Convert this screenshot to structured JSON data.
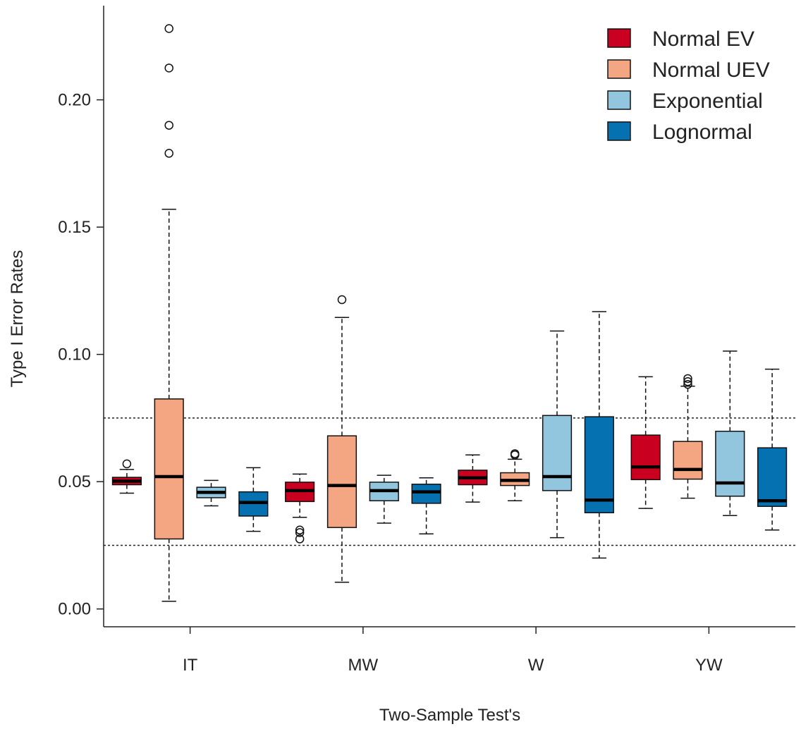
{
  "chart_data": {
    "type": "boxplot",
    "xlabel": "Two-Sample Test's",
    "ylabel": "Type I Error Rates",
    "ylim": [
      -0.007,
      0.237
    ],
    "yticks": [
      {
        "value": 0.0,
        "label": "0.00"
      },
      {
        "value": 0.05,
        "label": "0.05"
      },
      {
        "value": 0.1,
        "label": "0.10"
      },
      {
        "value": 0.15,
        "label": "0.15"
      },
      {
        "value": 0.2,
        "label": "0.20"
      }
    ],
    "categories": [
      "IT",
      "MW",
      "W",
      "YW"
    ],
    "reference_lines": [
      0.025,
      0.075
    ],
    "legend_position": "top-right",
    "series": [
      {
        "name": "Normal EV",
        "color": "#CA0020",
        "boxes": [
          {
            "whisker_low": 0.0455,
            "q1": 0.0488,
            "median": 0.0502,
            "q3": 0.0517,
            "whisker_high": 0.0548,
            "outliers": [
              0.057
            ]
          },
          {
            "whisker_low": 0.036,
            "q1": 0.0422,
            "median": 0.0465,
            "q3": 0.0498,
            "whisker_high": 0.053,
            "outliers": [
              0.0275,
              0.03,
              0.031
            ]
          },
          {
            "whisker_low": 0.042,
            "q1": 0.0488,
            "median": 0.0515,
            "q3": 0.0545,
            "whisker_high": 0.0605,
            "outliers": []
          },
          {
            "whisker_low": 0.0395,
            "q1": 0.0508,
            "median": 0.0558,
            "q3": 0.0683,
            "whisker_high": 0.0912,
            "outliers": []
          }
        ]
      },
      {
        "name": "Normal UEV",
        "color": "#F4A582",
        "boxes": [
          {
            "whisker_low": 0.003,
            "q1": 0.0275,
            "median": 0.052,
            "q3": 0.0825,
            "whisker_high": 0.157,
            "outliers": [
              0.179,
              0.19,
              0.2125,
              0.228
            ]
          },
          {
            "whisker_low": 0.0105,
            "q1": 0.032,
            "median": 0.0485,
            "q3": 0.068,
            "whisker_high": 0.1145,
            "outliers": [
              0.1215
            ]
          },
          {
            "whisker_low": 0.0425,
            "q1": 0.0485,
            "median": 0.0505,
            "q3": 0.0535,
            "whisker_high": 0.0588,
            "outliers": [
              0.0605,
              0.061
            ]
          },
          {
            "whisker_low": 0.0435,
            "q1": 0.051,
            "median": 0.0548,
            "q3": 0.0658,
            "whisker_high": 0.0875,
            "outliers": [
              0.0882,
              0.0893,
              0.0905
            ]
          }
        ]
      },
      {
        "name": "Exponential",
        "color": "#92C5DE",
        "boxes": [
          {
            "whisker_low": 0.0405,
            "q1": 0.0437,
            "median": 0.0458,
            "q3": 0.0478,
            "whisker_high": 0.0505,
            "outliers": []
          },
          {
            "whisker_low": 0.0337,
            "q1": 0.0425,
            "median": 0.0465,
            "q3": 0.0498,
            "whisker_high": 0.0525,
            "outliers": []
          },
          {
            "whisker_low": 0.028,
            "q1": 0.0465,
            "median": 0.052,
            "q3": 0.076,
            "whisker_high": 0.1092,
            "outliers": []
          },
          {
            "whisker_low": 0.0367,
            "q1": 0.0443,
            "median": 0.0495,
            "q3": 0.0698,
            "whisker_high": 0.1013,
            "outliers": []
          }
        ]
      },
      {
        "name": "Lognormal",
        "color": "#0571B0",
        "boxes": [
          {
            "whisker_low": 0.0305,
            "q1": 0.0365,
            "median": 0.0418,
            "q3": 0.046,
            "whisker_high": 0.0555,
            "outliers": []
          },
          {
            "whisker_low": 0.0295,
            "q1": 0.0415,
            "median": 0.046,
            "q3": 0.049,
            "whisker_high": 0.0515,
            "outliers": []
          },
          {
            "whisker_low": 0.02,
            "q1": 0.0378,
            "median": 0.0428,
            "q3": 0.0755,
            "whisker_high": 0.1168,
            "outliers": []
          },
          {
            "whisker_low": 0.031,
            "q1": 0.0403,
            "median": 0.0425,
            "q3": 0.0633,
            "whisker_high": 0.0942,
            "outliers": []
          }
        ]
      }
    ]
  }
}
